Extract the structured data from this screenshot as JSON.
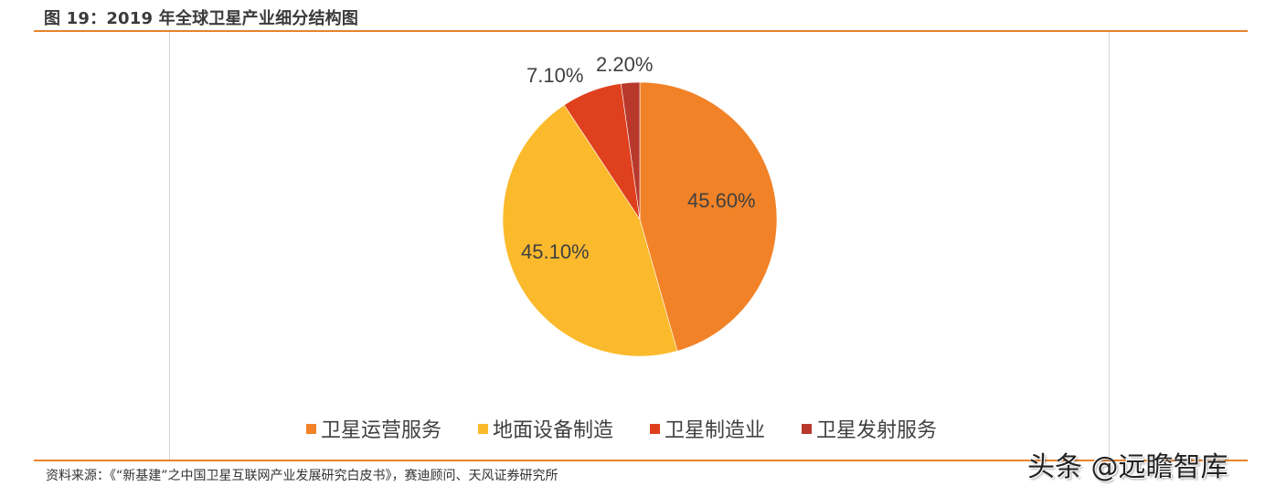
{
  "figure": {
    "title": "图 19：2019 年全球卫星产业细分结构图",
    "source": "资料来源：《“新基建”之中国卫星互联网产业发展研究白皮书》，赛迪顾问、天风证券研究所",
    "watermark": "头条 @远瞻智库"
  },
  "chart_data": {
    "type": "pie",
    "title": "2019 年全球卫星产业细分结构图",
    "categories": [
      "卫星运营服务",
      "地面设备制造",
      "卫星制造业",
      "卫星发射服务"
    ],
    "values": [
      45.6,
      45.1,
      7.1,
      2.2
    ],
    "labels": [
      "45.60%",
      "45.10%",
      "7.10%",
      "2.20%"
    ],
    "colors": [
      "#F28227",
      "#FBBA2C",
      "#DF401D",
      "#B8392C"
    ],
    "start_angle": "12 o'clock, clockwise",
    "legend_position": "bottom"
  }
}
